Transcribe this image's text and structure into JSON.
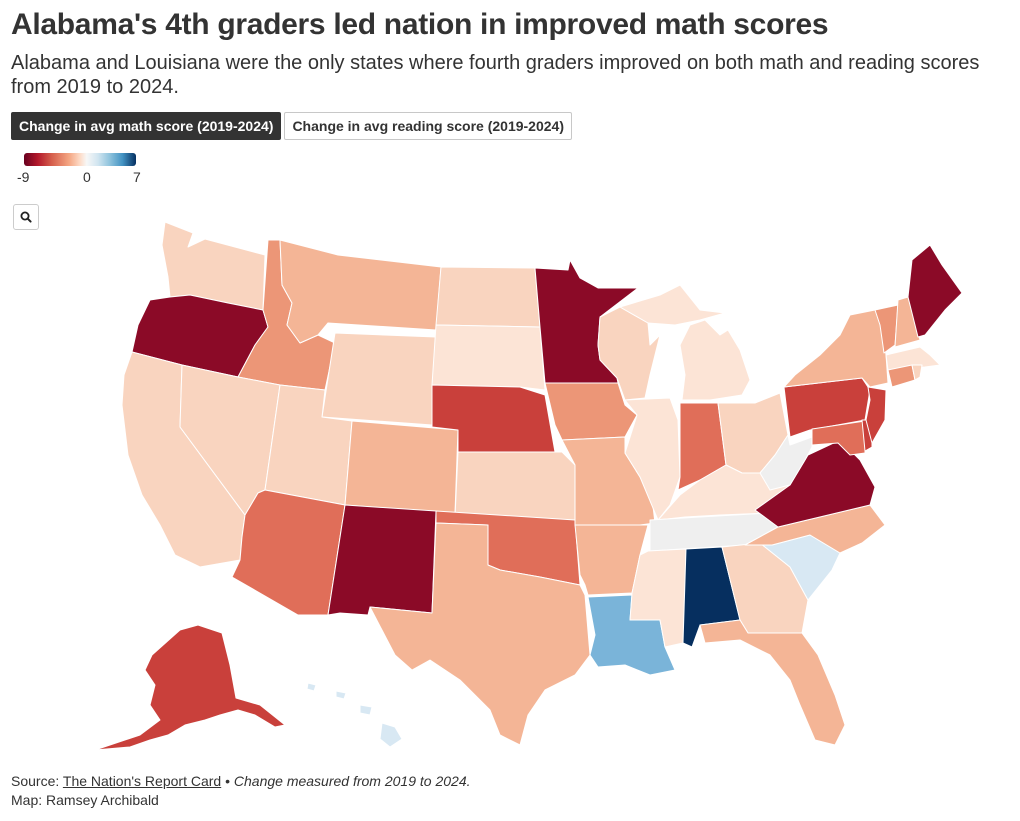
{
  "header": {
    "title": "Alabama's 4th graders led nation in improved math scores",
    "subtitle": "Alabama and Louisiana were the only states where fourth graders improved on both math and reading scores from 2019 to 2024."
  },
  "tabs": [
    {
      "label": "Change in avg math score (2019-2024)",
      "active": true
    },
    {
      "label": "Change in avg reading score (2019-2024)",
      "active": false
    }
  ],
  "legend": {
    "min": "-9",
    "mid": "0",
    "max": "7"
  },
  "zoom": {
    "icon": "magnifier-icon"
  },
  "colors": {
    "ramp": [
      "#67001f",
      "#b2182b",
      "#d6604d",
      "#f4a582",
      "#fddbc7",
      "#f7f7f7",
      "#d1e5f0",
      "#92c5de",
      "#4393c3",
      "#053061"
    ],
    "c_m9": "#8b0a27",
    "c_m6": "#c9403b",
    "c_m5": "#e06e59",
    "c_m4": "#ec9677",
    "c_m3": "#f4b596",
    "c_m2": "#f9d4bf",
    "c_m1": "#fce4d6",
    "c_0": "#efefef",
    "c_p1": "#d8e8f3",
    "c_p4": "#7ab4d9",
    "c_p7": "#062f5f"
  },
  "footer": {
    "source_prefix": "Source: ",
    "source_link": "The Nation's Report Card",
    "separator": " • ",
    "note": "Change measured from 2019 to 2024.",
    "credit": "Map: Ramsey Archibald"
  }
}
